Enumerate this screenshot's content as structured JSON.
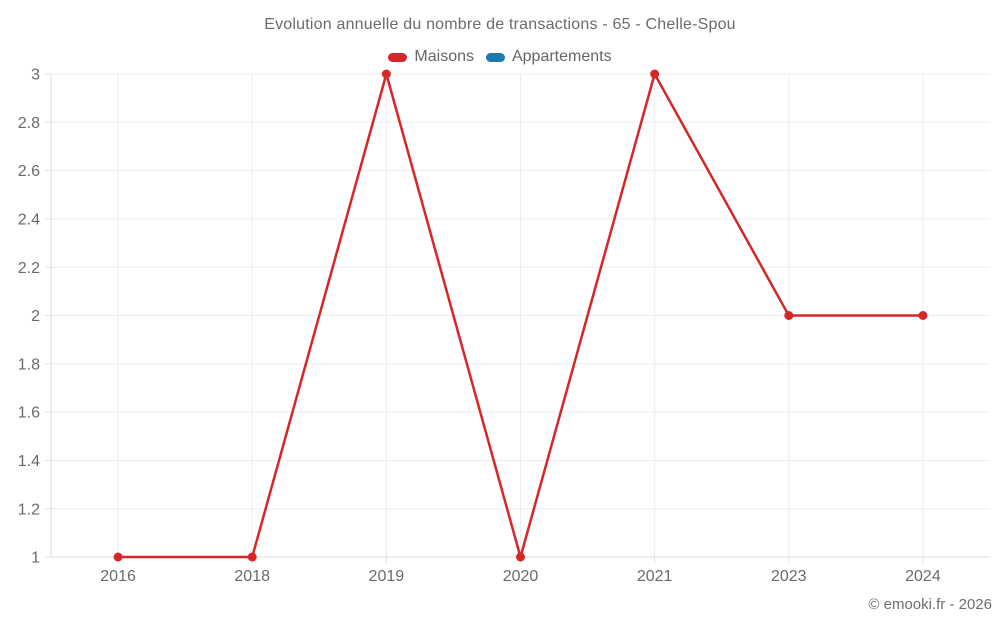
{
  "header": {
    "title": "Evolution annuelle du nombre de transactions - 65 - Chelle-Spou"
  },
  "legend": {
    "items": [
      {
        "label": "Maisons",
        "color": "#d62728"
      },
      {
        "label": "Appartements",
        "color": "#1f77b4"
      }
    ]
  },
  "footer": {
    "copyright": "© emooki.fr - 2026"
  },
  "chart_data": {
    "type": "line",
    "title": "Evolution annuelle du nombre de transactions - 65 - Chelle-Spou",
    "categories": [
      "2016",
      "2018",
      "2019",
      "2020",
      "2021",
      "2023",
      "2024"
    ],
    "series": [
      {
        "name": "Maisons",
        "color": "#d62728",
        "values": [
          1,
          1,
          3,
          1,
          3,
          2,
          2
        ]
      },
      {
        "name": "Appartements",
        "color": "#1f77b4",
        "values": []
      }
    ],
    "xlabel": "",
    "ylabel": "",
    "ylim": [
      1,
      3
    ],
    "ytick_step": 0.2,
    "grid": true,
    "legend_position": "top"
  }
}
